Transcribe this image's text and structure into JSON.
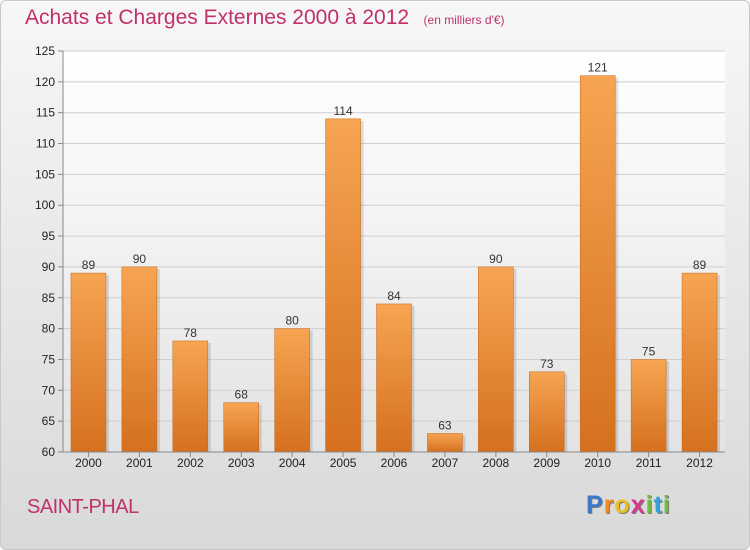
{
  "title": "Achats et Charges Externes 2000 à 2012",
  "unit": "(en milliers d'€)",
  "commune": "SAINT-PHAL",
  "brand": {
    "letters": [
      {
        "char": "P",
        "color": "#3a78c8"
      },
      {
        "char": "r",
        "color": "#f08c1e"
      },
      {
        "char": "o",
        "color": "#e8c020"
      },
      {
        "char": "x",
        "color": "#d83a8c"
      },
      {
        "char": "i",
        "color": "#6cbf3a"
      },
      {
        "char": "t",
        "color": "#3aa0d8"
      },
      {
        "char": "i",
        "color": "#6cbf3a"
      }
    ]
  },
  "chart_data": {
    "type": "bar",
    "categories": [
      "2000",
      "2001",
      "2002",
      "2003",
      "2004",
      "2005",
      "2006",
      "2007",
      "2008",
      "2009",
      "2010",
      "2011",
      "2012"
    ],
    "values": [
      89,
      90,
      78,
      68,
      80,
      114,
      84,
      63,
      90,
      73,
      121,
      75,
      89
    ],
    "title": "Achats et Charges Externes 2000 à 2012",
    "xlabel": "",
    "ylabel": "",
    "ylim": [
      60,
      125
    ],
    "ytick_step": 5,
    "grid": true,
    "legend": "none",
    "bar_color_top": "#f6a552",
    "bar_color_bottom": "#d5701e"
  }
}
